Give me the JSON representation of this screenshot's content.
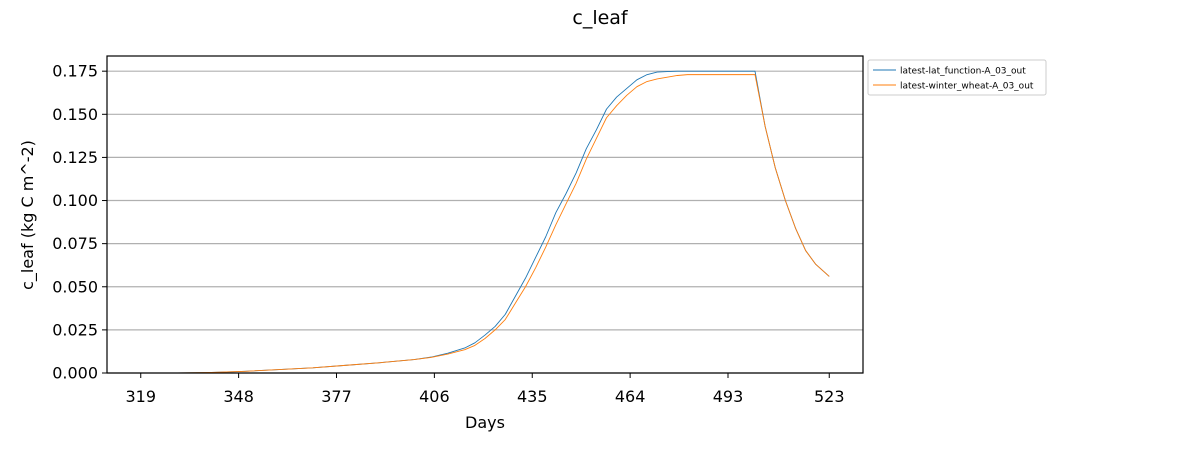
{
  "chart_data": {
    "type": "line",
    "title": "c_leaf",
    "xlabel": "Days",
    "ylabel": "c_leaf (kg C m^-2)",
    "xlim": [
      309,
      533
    ],
    "ylim": [
      0,
      0.1838
    ],
    "xticks": [
      319,
      348,
      377,
      406,
      435,
      464,
      493,
      523
    ],
    "yticks": [
      0.0,
      0.025,
      0.05,
      0.075,
      0.1,
      0.125,
      0.15,
      0.175
    ],
    "ytick_labels": [
      "0.000",
      "0.025",
      "0.050",
      "0.075",
      "0.100",
      "0.125",
      "0.150",
      "0.175"
    ],
    "grid": "horizontal",
    "legend_position": "outside-top-right",
    "series": [
      {
        "name": "latest-lat_function-A_03_out",
        "color": "#1f77b4",
        "x": [
          319,
          330,
          340,
          350,
          360,
          370,
          380,
          390,
          400,
          405,
          410,
          415,
          418,
          421,
          424,
          427,
          430,
          433,
          436,
          439,
          442,
          445,
          448,
          451,
          454,
          457,
          460,
          463,
          466,
          469,
          472,
          475,
          478,
          481,
          485,
          490,
          495,
          501,
          504,
          507,
          510,
          513,
          516,
          519,
          523
        ],
        "y": [
          0.0,
          0.0,
          0.0003,
          0.001,
          0.002,
          0.003,
          0.0045,
          0.006,
          0.0078,
          0.0092,
          0.0115,
          0.0145,
          0.0175,
          0.022,
          0.027,
          0.034,
          0.0445,
          0.055,
          0.067,
          0.079,
          0.093,
          0.104,
          0.116,
          0.13,
          0.141,
          0.153,
          0.16,
          0.165,
          0.17,
          0.173,
          0.1745,
          0.1748,
          0.175,
          0.175,
          0.175,
          0.175,
          0.175,
          0.175,
          0.143,
          0.119,
          0.1,
          0.084,
          0.071,
          0.063,
          0.056
        ]
      },
      {
        "name": "latest-winter_wheat-A_03_out",
        "color": "#ff7f0e",
        "x": [
          319,
          330,
          340,
          350,
          360,
          370,
          380,
          390,
          400,
          405,
          410,
          415,
          418,
          421,
          424,
          427,
          430,
          433,
          436,
          439,
          442,
          445,
          448,
          451,
          454,
          457,
          460,
          463,
          466,
          469,
          472,
          475,
          478,
          481,
          485,
          490,
          495,
          501,
          504,
          507,
          510,
          513,
          516,
          519,
          523
        ],
        "y": [
          0.0,
          0.0,
          0.0003,
          0.001,
          0.002,
          0.003,
          0.0045,
          0.006,
          0.0078,
          0.009,
          0.011,
          0.0135,
          0.016,
          0.02,
          0.025,
          0.031,
          0.0405,
          0.05,
          0.061,
          0.073,
          0.086,
          0.098,
          0.11,
          0.124,
          0.136,
          0.148,
          0.155,
          0.161,
          0.166,
          0.169,
          0.1705,
          0.1715,
          0.1725,
          0.173,
          0.173,
          0.173,
          0.173,
          0.173,
          0.143,
          0.119,
          0.1,
          0.084,
          0.071,
          0.063,
          0.056
        ]
      }
    ]
  }
}
